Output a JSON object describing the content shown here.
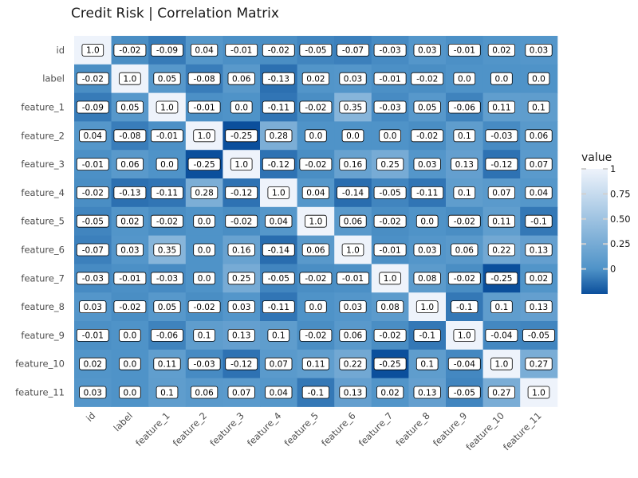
{
  "chart_data": {
    "type": "heatmap",
    "title": "Credit Risk | Correlation Matrix",
    "xlabel": "",
    "ylabel": "",
    "variables": [
      "id",
      "label",
      "feature_1",
      "feature_2",
      "feature_3",
      "feature_4",
      "feature_5",
      "feature_6",
      "feature_7",
      "feature_8",
      "feature_9",
      "feature_10",
      "feature_11"
    ],
    "matrix": [
      [
        1.0,
        -0.02,
        -0.09,
        0.04,
        -0.01,
        -0.02,
        -0.05,
        -0.07,
        -0.03,
        0.03,
        -0.01,
        0.02,
        0.03
      ],
      [
        -0.02,
        1.0,
        0.05,
        -0.08,
        0.06,
        -0.13,
        0.02,
        0.03,
        -0.01,
        -0.02,
        0.0,
        0.0,
        0.0
      ],
      [
        -0.09,
        0.05,
        1.0,
        -0.01,
        0.0,
        -0.11,
        -0.02,
        0.35,
        -0.03,
        0.05,
        -0.06,
        0.11,
        0.1
      ],
      [
        0.04,
        -0.08,
        -0.01,
        1.0,
        -0.25,
        0.28,
        0.0,
        0.0,
        0.0,
        -0.02,
        0.1,
        -0.03,
        0.06
      ],
      [
        -0.01,
        0.06,
        0.0,
        -0.25,
        1.0,
        -0.12,
        -0.02,
        0.16,
        0.25,
        0.03,
        0.13,
        -0.12,
        0.07
      ],
      [
        -0.02,
        -0.13,
        -0.11,
        0.28,
        -0.12,
        1.0,
        0.04,
        -0.14,
        -0.05,
        -0.11,
        0.1,
        0.07,
        0.04
      ],
      [
        -0.05,
        0.02,
        -0.02,
        0.0,
        -0.02,
        0.04,
        1.0,
        0.06,
        -0.02,
        0.0,
        -0.02,
        0.11,
        -0.1
      ],
      [
        -0.07,
        0.03,
        0.35,
        0.0,
        0.16,
        -0.14,
        0.06,
        1.0,
        -0.01,
        0.03,
        0.06,
        0.22,
        0.13
      ],
      [
        -0.03,
        -0.01,
        -0.03,
        0.0,
        0.25,
        -0.05,
        -0.02,
        -0.01,
        1.0,
        0.08,
        -0.02,
        -0.25,
        0.02
      ],
      [
        0.03,
        -0.02,
        0.05,
        -0.02,
        0.03,
        -0.11,
        0.0,
        0.03,
        0.08,
        1.0,
        -0.1,
        0.1,
        0.13
      ],
      [
        -0.01,
        0.0,
        -0.06,
        0.1,
        0.13,
        0.1,
        -0.02,
        0.06,
        -0.02,
        -0.1,
        1.0,
        -0.04,
        -0.05
      ],
      [
        0.02,
        0.0,
        0.11,
        -0.03,
        -0.12,
        0.07,
        0.11,
        0.22,
        -0.25,
        0.1,
        -0.04,
        1.0,
        0.27
      ],
      [
        0.03,
        0.0,
        0.1,
        0.06,
        0.07,
        0.04,
        -0.1,
        0.13,
        0.02,
        0.13,
        -0.05,
        0.27,
        1.0
      ]
    ],
    "color_range": [
      -0.25,
      1.0
    ],
    "colors": {
      "low": "#0b4f9c",
      "mid": "#4f93c8",
      "high": "#eef3fb"
    },
    "legend": {
      "title": "value",
      "ticks": [
        1,
        0.75,
        0.5,
        0.25,
        0
      ],
      "tick_labels": [
        "1",
        "0.75",
        "0.50",
        "0.25",
        "0"
      ],
      "placement": "right"
    },
    "grid": false
  }
}
